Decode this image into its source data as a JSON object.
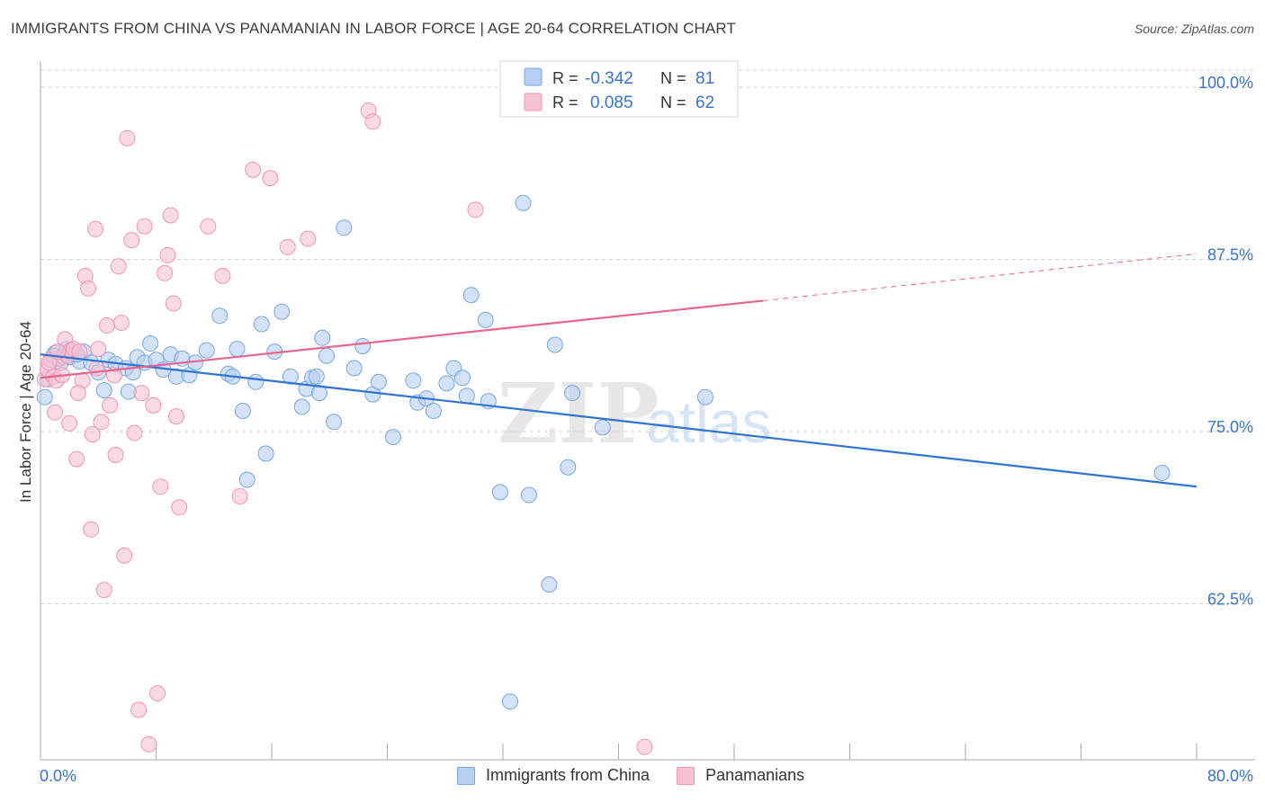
{
  "title": "IMMIGRANTS FROM CHINA VS PANAMANIAN IN LABOR FORCE | AGE 20-64 CORRELATION CHART",
  "source": "Source: ZipAtlas.com",
  "watermark": {
    "zip": "ZIP",
    "atlas": "atlas"
  },
  "legend": [
    {
      "r_label": "R =",
      "r_value": "-0.342",
      "n_label": "N =",
      "n_value": "81"
    },
    {
      "r_label": "R =",
      "r_value": "0.085",
      "n_label": "N =",
      "n_value": "62"
    }
  ],
  "bottom_legend": [
    "Immigrants from China",
    "Panamanians"
  ],
  "colors": {
    "blue_fill": "#b6cff0",
    "blue_stroke": "#7aa7e0",
    "blue_line": "#2f74d0",
    "pink_fill": "#f7c3d3",
    "pink_stroke": "#ef96b3",
    "pink_line": "#e8658f",
    "value_text": "#3b73c8",
    "grid": "#d4d4d4"
  },
  "chart_data": {
    "type": "scatter",
    "title": "IMMIGRANTS FROM CHINA VS PANAMANIAN IN LABOR FORCE | AGE 20-64 CORRELATION CHART",
    "xlabel": "",
    "ylabel": "In Labor Force | Age 20-64",
    "xlim": [
      0,
      80
    ],
    "ylim": [
      50,
      103
    ],
    "x_tick_labels": [
      "0.0%",
      "80.0%"
    ],
    "y_ticks": [
      62.5,
      75.0,
      87.5,
      100.0
    ],
    "y_tick_labels": [
      "62.5%",
      "75.0%",
      "87.5%",
      "100.0%"
    ],
    "grid": "horizontal dashed",
    "legend_position": "top-center",
    "series": [
      {
        "name": "Immigrants from China",
        "points": [
          [
            0.3,
            77.5
          ],
          [
            0.5,
            78.8
          ],
          [
            0.8,
            80.2
          ],
          [
            1.0,
            80.7
          ],
          [
            1.2,
            80.3
          ],
          [
            1.5,
            80.5
          ],
          [
            1.8,
            81.0
          ],
          [
            2.0,
            80.4
          ],
          [
            2.3,
            80.6
          ],
          [
            2.7,
            80.1
          ],
          [
            3.0,
            80.8
          ],
          [
            3.5,
            80.0
          ],
          [
            4.0,
            79.3
          ],
          [
            4.7,
            80.2
          ],
          [
            5.2,
            79.9
          ],
          [
            5.9,
            79.6
          ],
          [
            6.4,
            79.3
          ],
          [
            6.7,
            80.4
          ],
          [
            7.2,
            80.0
          ],
          [
            7.6,
            81.4
          ],
          [
            8.0,
            80.2
          ],
          [
            8.5,
            79.5
          ],
          [
            9.0,
            80.6
          ],
          [
            9.4,
            79.0
          ],
          [
            10.3,
            79.1
          ],
          [
            10.7,
            80.0
          ],
          [
            11.5,
            80.9
          ],
          [
            12.4,
            83.4
          ],
          [
            13.0,
            79.2
          ],
          [
            13.6,
            81.0
          ],
          [
            14.0,
            76.5
          ],
          [
            14.3,
            71.5
          ],
          [
            14.9,
            78.6
          ],
          [
            15.3,
            82.8
          ],
          [
            15.6,
            73.4
          ],
          [
            16.2,
            80.8
          ],
          [
            16.7,
            83.7
          ],
          [
            17.3,
            79.0
          ],
          [
            18.1,
            76.8
          ],
          [
            18.4,
            78.1
          ],
          [
            18.8,
            78.9
          ],
          [
            19.1,
            79.0
          ],
          [
            19.5,
            81.8
          ],
          [
            19.8,
            80.5
          ],
          [
            20.3,
            75.7
          ],
          [
            21.0,
            89.8
          ],
          [
            21.7,
            79.6
          ],
          [
            22.3,
            81.2
          ],
          [
            23.0,
            77.7
          ],
          [
            23.4,
            78.6
          ],
          [
            24.4,
            74.6
          ],
          [
            25.8,
            78.7
          ],
          [
            26.1,
            77.1
          ],
          [
            26.7,
            77.4
          ],
          [
            27.2,
            76.5
          ],
          [
            28.1,
            78.5
          ],
          [
            28.6,
            79.6
          ],
          [
            29.2,
            78.9
          ],
          [
            29.5,
            77.6
          ],
          [
            29.8,
            84.9
          ],
          [
            30.8,
            83.1
          ],
          [
            31.0,
            77.2
          ],
          [
            31.8,
            70.6
          ],
          [
            32.5,
            55.4
          ],
          [
            33.4,
            91.6
          ],
          [
            33.8,
            70.4
          ],
          [
            35.2,
            63.9
          ],
          [
            35.6,
            81.3
          ],
          [
            36.5,
            72.4
          ],
          [
            36.8,
            77.8
          ],
          [
            38.9,
            75.3
          ],
          [
            46.0,
            77.5
          ],
          [
            77.6,
            72.0
          ],
          [
            0.9,
            80.5
          ],
          [
            1.4,
            80.0
          ],
          [
            2.5,
            80.6
          ],
          [
            4.4,
            78.0
          ],
          [
            6.1,
            77.9
          ],
          [
            9.8,
            80.3
          ],
          [
            13.3,
            79.0
          ],
          [
            19.3,
            77.8
          ]
        ]
      },
      {
        "name": "Panamanians",
        "points": [
          [
            0.3,
            78.8
          ],
          [
            0.5,
            79.5
          ],
          [
            0.7,
            80.2
          ],
          [
            0.9,
            79.0
          ],
          [
            1.1,
            78.7
          ],
          [
            1.3,
            80.3
          ],
          [
            1.5,
            79.1
          ],
          [
            1.7,
            81.7
          ],
          [
            1.9,
            80.5
          ],
          [
            2.1,
            80.9
          ],
          [
            2.3,
            81.0
          ],
          [
            2.5,
            73.0
          ],
          [
            2.7,
            80.8
          ],
          [
            2.9,
            78.7
          ],
          [
            3.1,
            86.3
          ],
          [
            3.3,
            85.4
          ],
          [
            3.5,
            67.9
          ],
          [
            3.8,
            89.7
          ],
          [
            4.0,
            81.0
          ],
          [
            4.2,
            75.7
          ],
          [
            4.4,
            63.5
          ],
          [
            4.6,
            82.7
          ],
          [
            4.8,
            76.9
          ],
          [
            5.1,
            79.1
          ],
          [
            5.4,
            87.0
          ],
          [
            5.6,
            82.9
          ],
          [
            5.8,
            66.0
          ],
          [
            6.0,
            96.3
          ],
          [
            6.3,
            88.9
          ],
          [
            6.5,
            74.9
          ],
          [
            6.8,
            54.8
          ],
          [
            7.0,
            77.8
          ],
          [
            7.2,
            89.9
          ],
          [
            7.5,
            52.3
          ],
          [
            7.8,
            76.9
          ],
          [
            8.1,
            56.0
          ],
          [
            8.3,
            71.0
          ],
          [
            8.6,
            86.5
          ],
          [
            8.8,
            87.8
          ],
          [
            9.0,
            90.7
          ],
          [
            9.2,
            84.3
          ],
          [
            9.4,
            76.1
          ],
          [
            9.6,
            69.5
          ],
          [
            11.6,
            89.9
          ],
          [
            12.6,
            86.3
          ],
          [
            13.8,
            70.3
          ],
          [
            14.7,
            94.0
          ],
          [
            15.9,
            93.4
          ],
          [
            17.1,
            88.4
          ],
          [
            18.5,
            89.0
          ],
          [
            22.7,
            98.3
          ],
          [
            23.0,
            97.5
          ],
          [
            30.1,
            91.1
          ],
          [
            41.8,
            52.1
          ],
          [
            1.0,
            76.4
          ],
          [
            2.0,
            75.6
          ],
          [
            3.6,
            74.8
          ],
          [
            5.2,
            73.3
          ],
          [
            0.6,
            80.0
          ],
          [
            1.2,
            80.8
          ],
          [
            2.6,
            77.8
          ],
          [
            3.9,
            79.6
          ]
        ]
      }
    ],
    "trendlines": [
      {
        "series": "Immigrants from China",
        "x": [
          0,
          80
        ],
        "y": [
          80.6,
          71.0
        ],
        "style": "solid"
      },
      {
        "series": "Panamanians",
        "x": [
          0,
          50
        ],
        "y": [
          78.9,
          84.5
        ],
        "style": "solid"
      },
      {
        "series": "Panamanians",
        "x": [
          50,
          80
        ],
        "y": [
          84.5,
          87.9
        ],
        "style": "dashed"
      }
    ]
  }
}
